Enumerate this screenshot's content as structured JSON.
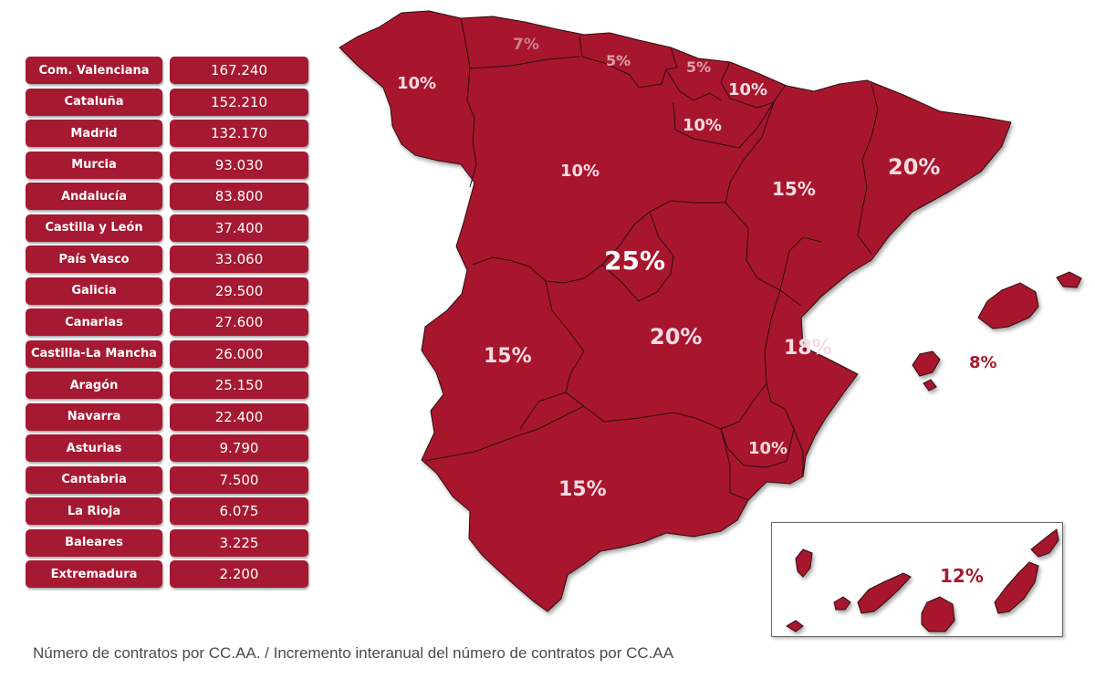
{
  "table": {
    "rows": [
      {
        "region": "Com. Valenciana",
        "value": "167.240"
      },
      {
        "region": "Cataluña",
        "value": "152.210"
      },
      {
        "region": "Madrid",
        "value": "132.170"
      },
      {
        "region": "Murcia",
        "value": "93.030"
      },
      {
        "region": "Andalucía",
        "value": "83.800"
      },
      {
        "region": "Castilla y León",
        "value": "37.400"
      },
      {
        "region": "País Vasco",
        "value": "33.060"
      },
      {
        "region": "Galicia",
        "value": "29.500"
      },
      {
        "region": "Canarias",
        "value": "27.600"
      },
      {
        "region": "Castilla-La Mancha",
        "value": "26.000"
      },
      {
        "region": "Aragón",
        "value": "25.150"
      },
      {
        "region": "Navarra",
        "value": "22.400"
      },
      {
        "region": "Asturias",
        "value": "9.790"
      },
      {
        "region": "Cantabria",
        "value": "7.500"
      },
      {
        "region": "La Rioja",
        "value": "6.075"
      },
      {
        "region": "Baleares",
        "value": "3.225"
      },
      {
        "region": "Extremadura",
        "value": "2.200"
      }
    ]
  },
  "map": {
    "fill_color": "#a8192f",
    "labels": {
      "galicia": "10%",
      "asturias": "7%",
      "cantabria": "5%",
      "pais_vasco": "5%",
      "navarra": "10%",
      "la_rioja": "10%",
      "castilla_leon": "10%",
      "aragon": "15%",
      "cataluna": "20%",
      "madrid": "25%",
      "castilla_la_mancha": "20%",
      "valencia": "18%",
      "extremadura": "15%",
      "murcia": "10%",
      "andalucia": "15%",
      "baleares": "8%",
      "canarias": "12%"
    }
  },
  "caption": "Número de contratos por CC.AA. / Incremento interanual del número de contratos por CC.AA"
}
